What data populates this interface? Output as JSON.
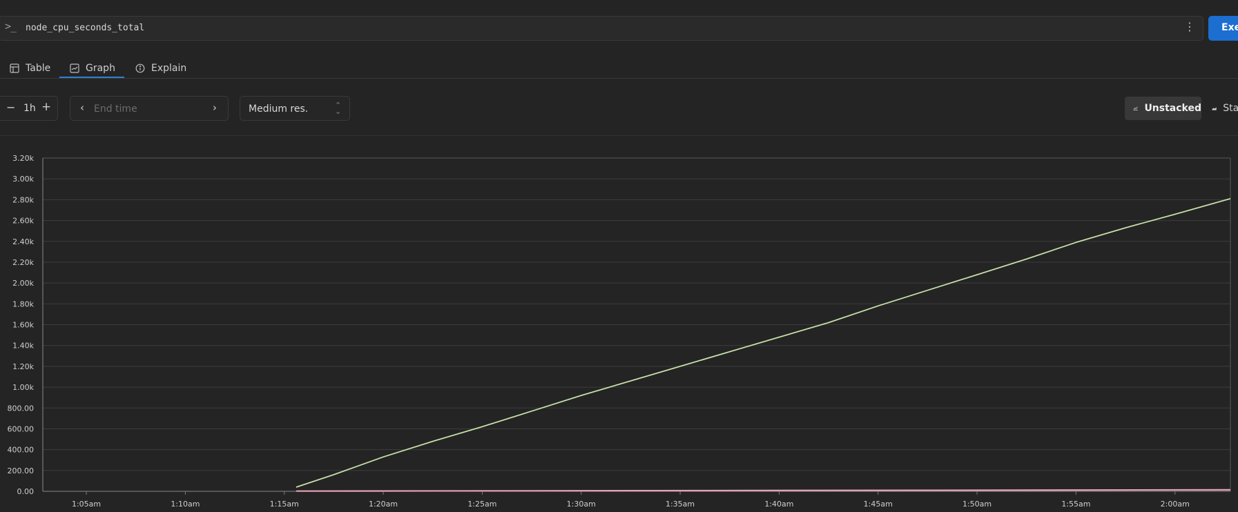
{
  "query": {
    "prompt_icon": ">_",
    "expression": "node_cpu_seconds_total",
    "menu_icon": "kebab-vertical-icon",
    "execute_label": "Execute"
  },
  "tabs": [
    {
      "label": "Table",
      "icon": "table-icon"
    },
    {
      "label": "Graph",
      "icon": "graph-icon",
      "active": true
    },
    {
      "label": "Explain",
      "icon": "info-icon"
    }
  ],
  "controls": {
    "range_minus": "−",
    "range_value": "1h",
    "range_plus": "+",
    "endtime_prev": "‹",
    "endtime_placeholder": "End time",
    "endtime_next": "›",
    "resolution": "Medium res.",
    "unstacked_label": "Unstacked",
    "stacked_label": "Stacked"
  },
  "colors": {
    "background": "#242424",
    "accent": "#1c6ed0",
    "series_main": "#c6e0a8",
    "series_low": "#e7a2b6"
  },
  "chart_data": {
    "type": "line",
    "x_tick_labels": [
      "1:05am",
      "1:10am",
      "1:15am",
      "1:20am",
      "1:25am",
      "1:30am",
      "1:35am",
      "1:40am",
      "1:45am",
      "1:50am",
      "1:55am",
      "2:00am"
    ],
    "y_tick_labels": [
      "0.00",
      "200.00",
      "400.00",
      "600.00",
      "800.00",
      "1.00k",
      "1.20k",
      "1.40k",
      "1.60k",
      "1.80k",
      "2.00k",
      "2.20k",
      "2.40k",
      "2.60k",
      "2.80k",
      "3.00k",
      "3.20k"
    ],
    "xlim_minutes_after_1am": [
      2.8,
      62.8
    ],
    "ylim": [
      0,
      3200
    ],
    "grid": true,
    "series": [
      {
        "x_minutes_after_1am": [
          15.6,
          17.5,
          20,
          22.5,
          25,
          27.5,
          30,
          32.5,
          35,
          37.5,
          40,
          42.5,
          45,
          47.5,
          50,
          52.5,
          55,
          57.5,
          60,
          62.8
        ],
        "values": [
          40,
          160,
          330,
          480,
          620,
          770,
          920,
          1060,
          1200,
          1340,
          1480,
          1620,
          1780,
          1930,
          2080,
          2230,
          2390,
          2530,
          2660,
          2810
        ],
        "color": "#c6e0a8"
      },
      {
        "x_minutes_after_1am": [
          15.6,
          30,
          45,
          62.8
        ],
        "values": [
          2,
          5,
          9,
          14
        ],
        "color": "#e7a2b6"
      }
    ]
  }
}
